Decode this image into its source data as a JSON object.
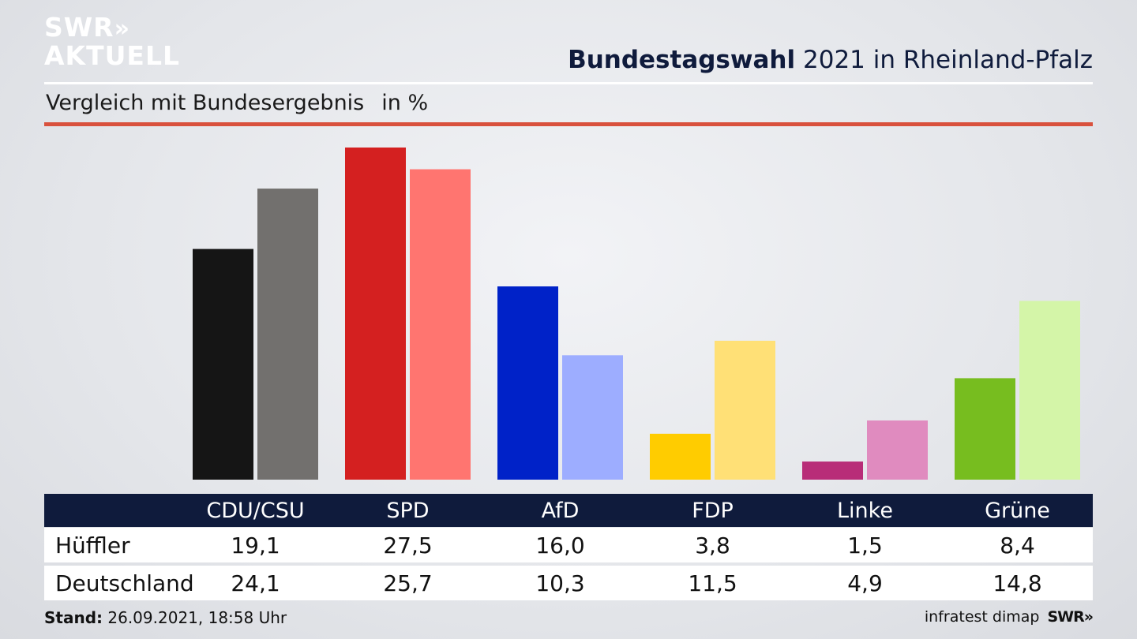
{
  "logo": {
    "line1": "SWR",
    "arrows": "»",
    "line2": "AKTUELL"
  },
  "header": {
    "title_bold": "Bundestagswahl",
    "title_rest": "2021 in Rheinland-Pfalz"
  },
  "subheader": {
    "text": "Vergleich mit Bundesergebnis",
    "unit": "in %"
  },
  "colors": {
    "background": "#e4e6ea",
    "navy": "#0f1b3c",
    "accent_red": "#d9513d",
    "bars_primary": [
      "#151515",
      "#d42020",
      "#0022c8",
      "#ffcc00",
      "#b82d78",
      "#77bd1f"
    ],
    "bars_secondary": [
      "#72706e",
      "#ff7570",
      "#9dadff",
      "#ffe076",
      "#e08bbf",
      "#d4f5a8"
    ]
  },
  "chart_data": {
    "type": "bar",
    "categories": [
      "CDU/CSU",
      "SPD",
      "AfD",
      "FDP",
      "Linke",
      "Grüne"
    ],
    "series": [
      {
        "name": "Hüffler",
        "values": [
          19.1,
          27.5,
          16.0,
          3.8,
          1.5,
          8.4
        ]
      },
      {
        "name": "Deutschland",
        "values": [
          24.1,
          25.7,
          10.3,
          11.5,
          4.9,
          14.8
        ]
      }
    ],
    "ylim": [
      0,
      27.5
    ],
    "grid": false,
    "legend": "table-below"
  },
  "table": {
    "rows": [
      {
        "label": "Hüffler",
        "values": [
          "19,1",
          "27,5",
          "16,0",
          "3,8",
          "1,5",
          "8,4"
        ]
      },
      {
        "label": "Deutschland",
        "values": [
          "24,1",
          "25,7",
          "10,3",
          "11,5",
          "4,9",
          "14,8"
        ]
      }
    ]
  },
  "footer": {
    "stand_label": "Stand:",
    "stand_value": "26.09.2021, 18:58 Uhr",
    "source": "infratest dimap",
    "brand": "SWR»"
  }
}
